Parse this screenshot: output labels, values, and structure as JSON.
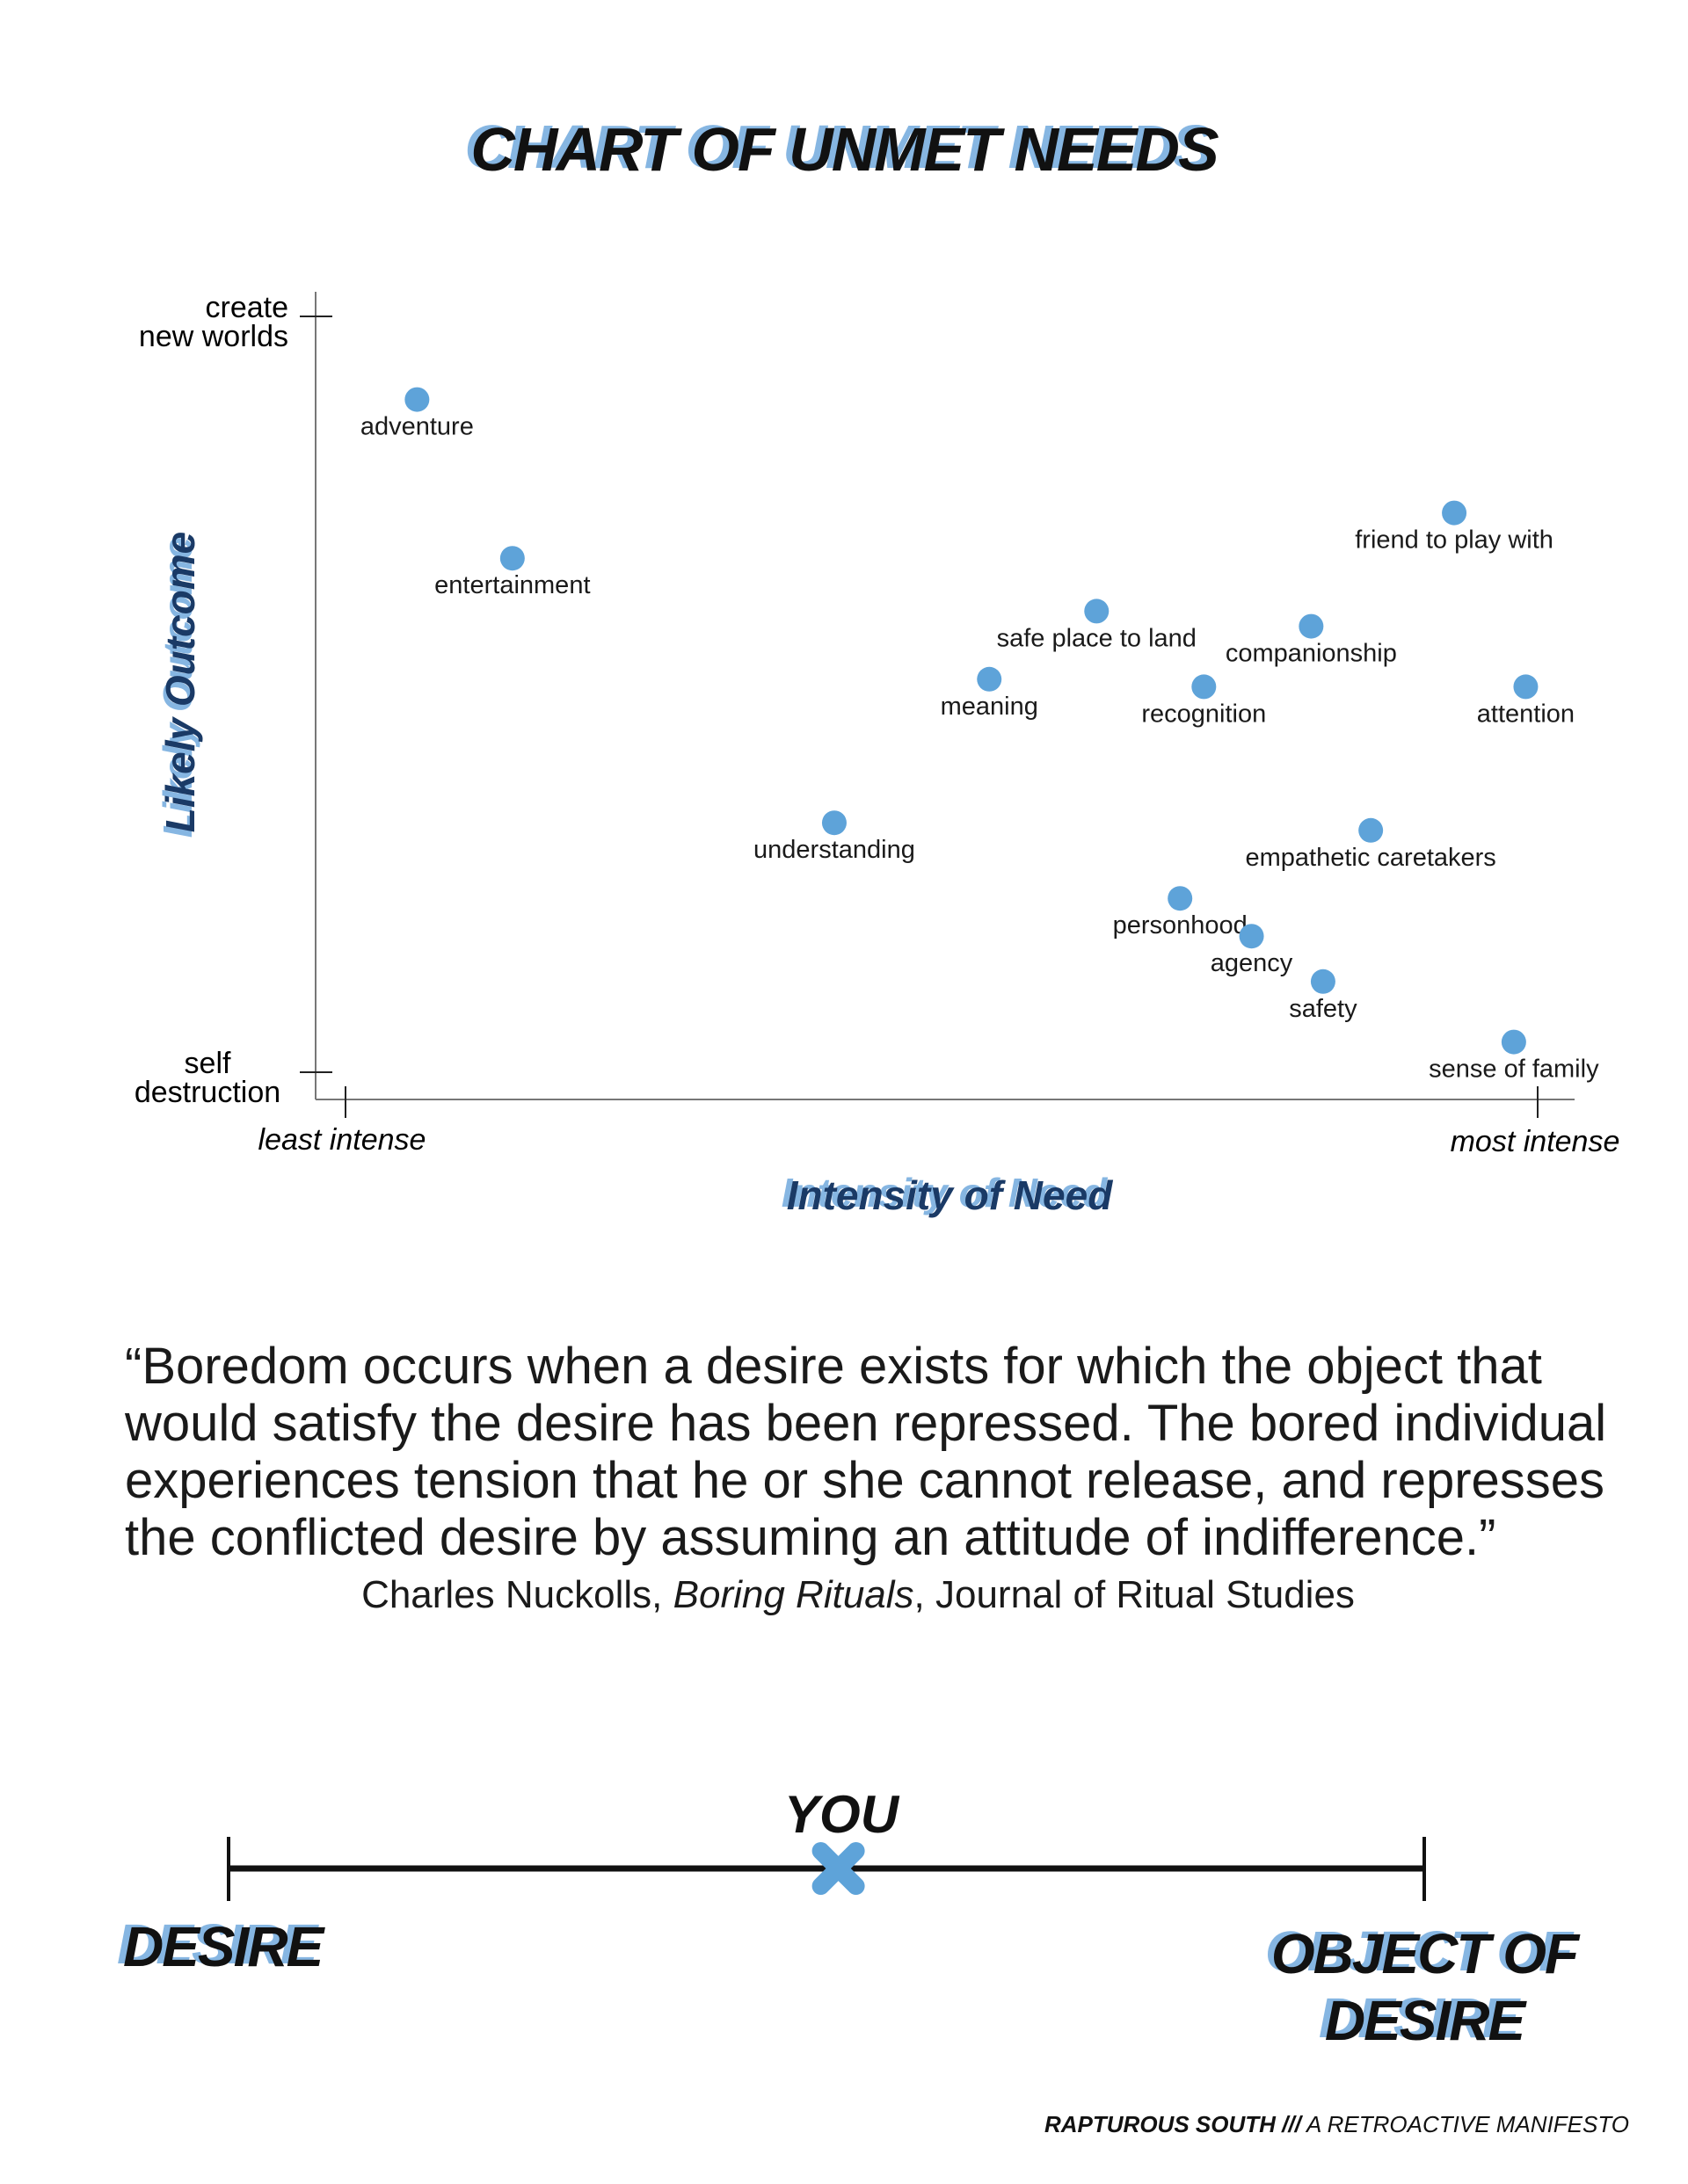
{
  "title": "CHART OF UNMET NEEDS",
  "chart_data": {
    "type": "scatter",
    "title": "CHART OF UNMET NEEDS",
    "xlabel": "Intensity of Need",
    "ylabel": "Likely Outcome",
    "x_tick_labels": [
      "least intense",
      "most intense"
    ],
    "y_tick_labels": [
      "self destruction",
      "create new worlds"
    ],
    "y_tick_label_lines": {
      "top": [
        "create",
        "new worlds"
      ],
      "bottom": [
        "self",
        "destruction"
      ]
    },
    "xlim": [
      0,
      100
    ],
    "ylim": [
      0,
      100
    ],
    "grid": false,
    "point_color": "#5ea3d9",
    "points": [
      {
        "label": "adventure",
        "x": 6,
        "y": 89
      },
      {
        "label": "entertainment",
        "x": 14,
        "y": 68
      },
      {
        "label": "safe place to land",
        "x": 63,
        "y": 61
      },
      {
        "label": "companionship",
        "x": 81,
        "y": 59
      },
      {
        "label": "friend to play with",
        "x": 93,
        "y": 74
      },
      {
        "label": "meaning",
        "x": 54,
        "y": 52
      },
      {
        "label": "recognition",
        "x": 72,
        "y": 51
      },
      {
        "label": "attention",
        "x": 99,
        "y": 51
      },
      {
        "label": "understanding",
        "x": 41,
        "y": 33
      },
      {
        "label": "empathetic caretakers",
        "x": 86,
        "y": 32
      },
      {
        "label": "personhood",
        "x": 70,
        "y": 23
      },
      {
        "label": "agency",
        "x": 76,
        "y": 18
      },
      {
        "label": "safety",
        "x": 82,
        "y": 12
      },
      {
        "label": "sense of family",
        "x": 98,
        "y": 4
      }
    ]
  },
  "quote": {
    "text": "“Boredom occurs when a desire exists for which the object that would satisfy the desire has been repressed. The bored individual experiences tension that he or she cannot release, and represses the conflicted desire by assuming an attitude of indifference.”",
    "author": "Charles Nuckolls, ",
    "work": "Boring Rituals",
    "source": ", Journal of Ritual Studies"
  },
  "scale": {
    "marker_label": "YOU",
    "left_label": "DESIRE",
    "right_label_line1": "OBJECT OF",
    "right_label_line2": "DESIRE",
    "marker_icon": "x-mark-icon",
    "marker_color": "#5ea3d9",
    "marker_position": 0.51
  },
  "footer": {
    "bold": "RAPTUROUS SOUTH ///",
    "rest": " A RETROACTIVE MANIFESTO"
  }
}
